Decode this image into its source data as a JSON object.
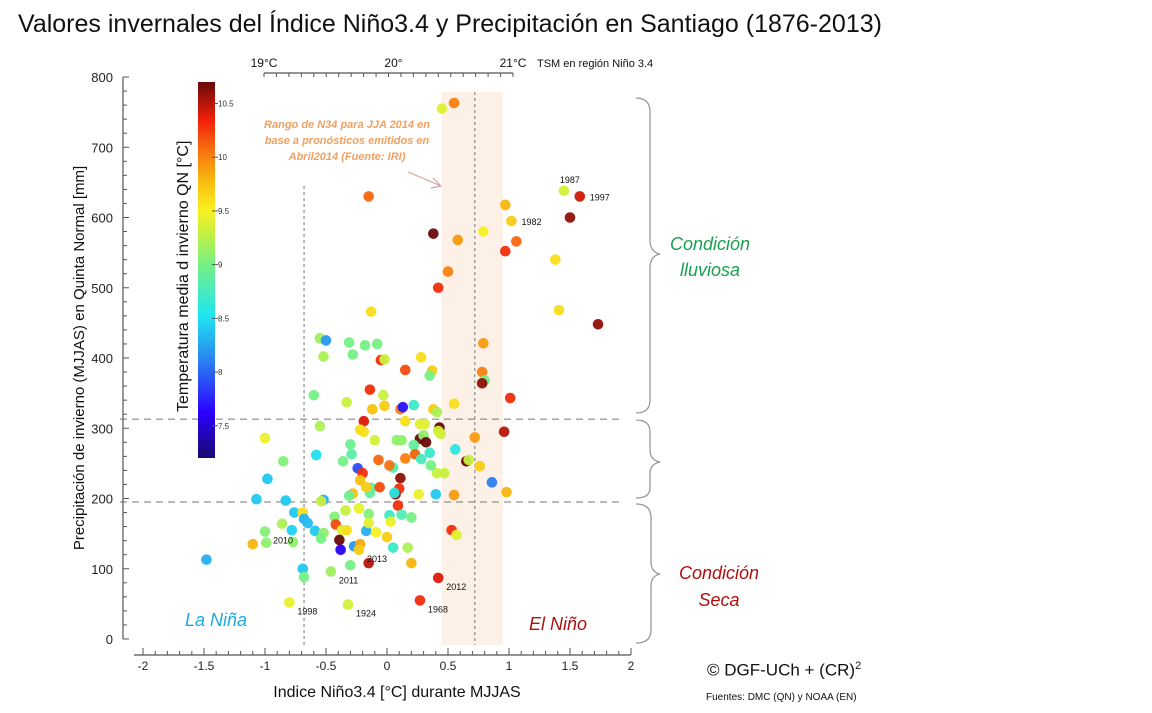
{
  "title": "Valores invernales del Índice Niño3.4 y Precipitación en Santiago (1876-2013)",
  "credit": {
    "text": "© DGF-UCh  + (CR)",
    "superscript": "2"
  },
  "sources": "Fuentes: DMC (QN) y NOAA (EN)",
  "annotations": {
    "forecast_range": [
      "Rango de N34 para JJA 2014 en",
      "base a pronósticos emitidos en",
      "Abril2014 (Fuente: IRI)"
    ],
    "la_nina": "La Niña",
    "el_nino": "El Niño",
    "rainy": [
      "Condición",
      "lluviosa"
    ],
    "dry": [
      "Condición",
      "Seca"
    ]
  },
  "colors": {
    "forecast_text": "#f0a060",
    "forecast_band": "#fdf0e6",
    "rainy_text": "#1aa050",
    "dry_text": "#b01010",
    "la_nina_text": "#20a8e0",
    "el_nino_text": "#b01010"
  },
  "chart_data": {
    "type": "scatter",
    "title": "Valores invernales del Índice Niño3.4 y Precipitación en Santiago (1876-2013)",
    "xlabel": "Indice Niño3.4 [°C] durante MJJAS",
    "ylabel": "Precipitación de invierno (MJJAS)  en Quinta Normal [mm]",
    "xlim": [
      -2,
      2
    ],
    "ylim": [
      0,
      800
    ],
    "xticks": [
      -2,
      -1.5,
      -1,
      -0.5,
      0,
      0.5,
      1,
      1.5,
      2
    ],
    "xtick_labels": [
      "-2",
      "-1.5",
      "-1",
      "-0.5",
      "0",
      "0.5",
      "1",
      "1.5",
      "2"
    ],
    "yticks": [
      0,
      100,
      200,
      300,
      400,
      500,
      600,
      700,
      800
    ],
    "ytick_labels": [
      "0",
      "100",
      "200",
      "300",
      "400",
      "500",
      "600",
      "700",
      "800"
    ],
    "top_axis": {
      "label": "TSM en región Niño 3.4",
      "ticks": [
        {
          "x": -1.0,
          "label": "19°C"
        },
        {
          "x": 0.0,
          "label": "20°"
        },
        {
          "x": 1.0,
          "label": "21°C"
        }
      ]
    },
    "colorbar": {
      "label": "Temperatura media d invierno QN [°C]",
      "range": [
        7.2,
        10.7
      ],
      "ticks": [
        7.5,
        8,
        8.5,
        9,
        9.5,
        10,
        10.5
      ],
      "tick_labels": [
        "7.5",
        "8",
        "8.5",
        "9",
        "9.5",
        "10",
        "10.5"
      ],
      "colormap": "jet"
    },
    "reference_lines": {
      "horizontal_mm": [
        313,
        195
      ],
      "vertical_index": [
        -0.68,
        0.72
      ]
    },
    "forecast_band": [
      0.45,
      0.95
    ],
    "grid": false,
    "points": [
      {
        "x": 0.45,
        "y": 755,
        "t": 9.4
      },
      {
        "x": 0.55,
        "y": 763,
        "t": 10.0
      },
      {
        "x": -0.15,
        "y": 630,
        "t": 10.1
      },
      {
        "x": 1.45,
        "y": 638,
        "t": 9.35,
        "label": "1987"
      },
      {
        "x": 1.58,
        "y": 630,
        "t": 10.45,
        "label": "1997"
      },
      {
        "x": 0.97,
        "y": 618,
        "t": 9.8
      },
      {
        "x": 1.02,
        "y": 595,
        "t": 9.7,
        "label": "1982"
      },
      {
        "x": 1.5,
        "y": 600,
        "t": 10.6
      },
      {
        "x": 0.38,
        "y": 577,
        "t": 10.8
      },
      {
        "x": 0.58,
        "y": 568,
        "t": 9.9
      },
      {
        "x": 0.79,
        "y": 580,
        "t": 9.5
      },
      {
        "x": 1.06,
        "y": 566,
        "t": 10.1
      },
      {
        "x": 0.97,
        "y": 552,
        "t": 10.3
      },
      {
        "x": 1.38,
        "y": 540,
        "t": 9.6
      },
      {
        "x": 0.5,
        "y": 523,
        "t": 10.0
      },
      {
        "x": 0.42,
        "y": 500,
        "t": 10.3
      },
      {
        "x": 1.41,
        "y": 468,
        "t": 9.6
      },
      {
        "x": 1.73,
        "y": 448,
        "t": 10.6
      },
      {
        "x": -0.13,
        "y": 466,
        "t": 9.6
      },
      {
        "x": -0.55,
        "y": 428,
        "t": 9.15
      },
      {
        "x": -0.5,
        "y": 425,
        "t": 8.2
      },
      {
        "x": -0.31,
        "y": 422,
        "t": 9.0
      },
      {
        "x": -0.18,
        "y": 418,
        "t": 9.0
      },
      {
        "x": -0.08,
        "y": 420,
        "t": 9.0
      },
      {
        "x": -0.52,
        "y": 402,
        "t": 9.2
      },
      {
        "x": -0.28,
        "y": 405,
        "t": 9.0
      },
      {
        "x": -0.05,
        "y": 397,
        "t": 10.3
      },
      {
        "x": -0.02,
        "y": 398,
        "t": 9.3
      },
      {
        "x": 0.28,
        "y": 401,
        "t": 9.6
      },
      {
        "x": 0.79,
        "y": 421,
        "t": 9.9
      },
      {
        "x": 0.78,
        "y": 380,
        "t": 10.0
      },
      {
        "x": 0.8,
        "y": 368,
        "t": 8.95
      },
      {
        "x": 0.78,
        "y": 364,
        "t": 10.6
      },
      {
        "x": 1.01,
        "y": 343,
        "t": 10.3
      },
      {
        "x": 0.37,
        "y": 382,
        "t": 9.7
      },
      {
        "x": 0.15,
        "y": 383,
        "t": 10.2
      },
      {
        "x": 0.35,
        "y": 375,
        "t": 9.0
      },
      {
        "x": -0.6,
        "y": 347,
        "t": 9.0
      },
      {
        "x": -0.14,
        "y": 355,
        "t": 10.3
      },
      {
        "x": -0.03,
        "y": 347,
        "t": 9.3
      },
      {
        "x": 0.55,
        "y": 335,
        "t": 9.6
      },
      {
        "x": -0.33,
        "y": 337,
        "t": 9.3
      },
      {
        "x": -0.12,
        "y": 327,
        "t": 9.75
      },
      {
        "x": -0.02,
        "y": 332,
        "t": 9.7
      },
      {
        "x": 0.11,
        "y": 327,
        "t": 10.0
      },
      {
        "x": 0.13,
        "y": 330,
        "t": 7.7
      },
      {
        "x": 0.22,
        "y": 333,
        "t": 8.7
      },
      {
        "x": 0.38,
        "y": 327,
        "t": 9.7
      },
      {
        "x": 0.41,
        "y": 323,
        "t": 9.2
      },
      {
        "x": -0.55,
        "y": 303,
        "t": 9.2
      },
      {
        "x": -0.19,
        "y": 310,
        "t": 10.4
      },
      {
        "x": 0.15,
        "y": 310,
        "t": 9.6
      },
      {
        "x": 0.27,
        "y": 306,
        "t": 9.4
      },
      {
        "x": 0.31,
        "y": 306,
        "t": 9.4
      },
      {
        "x": 0.43,
        "y": 301,
        "t": 10.8
      },
      {
        "x": 0.72,
        "y": 287,
        "t": 9.9
      },
      {
        "x": 0.96,
        "y": 295,
        "t": 10.5
      },
      {
        "x": -1.0,
        "y": 286,
        "t": 9.45
      },
      {
        "x": -0.22,
        "y": 298,
        "t": 9.6
      },
      {
        "x": -0.19,
        "y": 295,
        "t": 9.6
      },
      {
        "x": -0.1,
        "y": 283,
        "t": 9.35
      },
      {
        "x": 0.08,
        "y": 283,
        "t": 9.1
      },
      {
        "x": 0.12,
        "y": 283,
        "t": 9.1
      },
      {
        "x": 0.27,
        "y": 285,
        "t": 10.8
      },
      {
        "x": 0.3,
        "y": 290,
        "t": 9.1
      },
      {
        "x": 0.22,
        "y": 276,
        "t": 8.9
      },
      {
        "x": -0.3,
        "y": 277,
        "t": 8.95
      },
      {
        "x": 0.56,
        "y": 270,
        "t": 8.6
      },
      {
        "x": -0.58,
        "y": 262,
        "t": 8.5
      },
      {
        "x": -0.36,
        "y": 253,
        "t": 9.0
      },
      {
        "x": -0.29,
        "y": 263,
        "t": 8.85
      },
      {
        "x": -0.07,
        "y": 255,
        "t": 10.1
      },
      {
        "x": 0.05,
        "y": 244,
        "t": 8.8
      },
      {
        "x": 0.15,
        "y": 257,
        "t": 10.0
      },
      {
        "x": 0.23,
        "y": 263,
        "t": 8.7
      },
      {
        "x": 0.65,
        "y": 253,
        "t": 10.8
      },
      {
        "x": 0.67,
        "y": 255,
        "t": 9.3
      },
      {
        "x": 0.76,
        "y": 246,
        "t": 9.7
      },
      {
        "x": -0.85,
        "y": 253,
        "t": 9.05
      },
      {
        "x": -0.98,
        "y": 228,
        "t": 8.4
      },
      {
        "x": -0.24,
        "y": 243,
        "t": 7.9
      },
      {
        "x": -0.2,
        "y": 236,
        "t": 10.3
      },
      {
        "x": -0.22,
        "y": 226,
        "t": 9.75
      },
      {
        "x": 0.02,
        "y": 247,
        "t": 10.05
      },
      {
        "x": 0.11,
        "y": 229,
        "t": 10.6
      },
      {
        "x": 0.1,
        "y": 214,
        "t": 10.3
      },
      {
        "x": 0.07,
        "y": 206,
        "t": 10.6
      },
      {
        "x": 0.06,
        "y": 208,
        "t": 8.6
      },
      {
        "x": -0.13,
        "y": 215,
        "t": 8.9
      },
      {
        "x": -0.14,
        "y": 208,
        "t": 8.9
      },
      {
        "x": -0.06,
        "y": 216,
        "t": 10.2
      },
      {
        "x": -0.28,
        "y": 207,
        "t": 9.75
      },
      {
        "x": -0.31,
        "y": 204,
        "t": 8.95
      },
      {
        "x": 0.41,
        "y": 236,
        "t": 9.3
      },
      {
        "x": 0.47,
        "y": 236,
        "t": 9.3
      },
      {
        "x": 0.26,
        "y": 206,
        "t": 9.45
      },
      {
        "x": 0.4,
        "y": 206,
        "t": 8.4
      },
      {
        "x": 0.55,
        "y": 205,
        "t": 9.9
      },
      {
        "x": 0.86,
        "y": 223,
        "t": 8.1
      },
      {
        "x": 0.98,
        "y": 209,
        "t": 9.8
      },
      {
        "x": -1.07,
        "y": 199,
        "t": 8.4
      },
      {
        "x": -0.83,
        "y": 197,
        "t": 8.4
      },
      {
        "x": -0.52,
        "y": 198,
        "t": 8.3
      },
      {
        "x": -0.54,
        "y": 196,
        "t": 9.3
      },
      {
        "x": -0.76,
        "y": 180,
        "t": 8.4
      },
      {
        "x": -0.69,
        "y": 180,
        "t": 9.6
      },
      {
        "x": -0.68,
        "y": 171,
        "t": 8.3
      },
      {
        "x": -0.43,
        "y": 174,
        "t": 9.05
      },
      {
        "x": -0.34,
        "y": 183,
        "t": 9.3
      },
      {
        "x": -0.23,
        "y": 186,
        "t": 9.45
      },
      {
        "x": -0.15,
        "y": 178,
        "t": 9.05
      },
      {
        "x": 0.02,
        "y": 176,
        "t": 8.7
      },
      {
        "x": 0.09,
        "y": 190,
        "t": 10.3
      },
      {
        "x": -0.59,
        "y": 154,
        "t": 8.4
      },
      {
        "x": -0.65,
        "y": 165,
        "t": 8.35
      },
      {
        "x": -0.42,
        "y": 163,
        "t": 10.2
      },
      {
        "x": -0.37,
        "y": 155,
        "t": 9.4
      },
      {
        "x": -0.33,
        "y": 155,
        "t": 9.6
      },
      {
        "x": -0.52,
        "y": 151,
        "t": 9.1
      },
      {
        "x": -0.54,
        "y": 143,
        "t": 9.0
      },
      {
        "x": -0.39,
        "y": 141,
        "t": 10.8
      },
      {
        "x": -0.17,
        "y": 154,
        "t": 8.3
      },
      {
        "x": -0.09,
        "y": 152,
        "t": 9.5
      },
      {
        "x": 0.03,
        "y": 167,
        "t": 9.45
      },
      {
        "x": 0.12,
        "y": 177,
        "t": 8.8
      },
      {
        "x": -0.15,
        "y": 165,
        "t": 9.4
      },
      {
        "x": 0.2,
        "y": 173,
        "t": 9.0
      },
      {
        "x": -0.27,
        "y": 132,
        "t": 8.2
      },
      {
        "x": -0.22,
        "y": 135,
        "t": 9.85
      },
      {
        "x": -0.23,
        "y": 127,
        "t": 9.7,
        "label": "2013"
      },
      {
        "x": 0.0,
        "y": 145,
        "t": 9.7
      },
      {
        "x": 0.05,
        "y": 130,
        "t": 8.7
      },
      {
        "x": -0.38,
        "y": 127,
        "t": 7.6
      },
      {
        "x": 0.53,
        "y": 155,
        "t": 10.3
      },
      {
        "x": 0.57,
        "y": 148,
        "t": 9.4
      },
      {
        "x": -1.1,
        "y": 135,
        "t": 9.8
      },
      {
        "x": -0.99,
        "y": 137,
        "t": 9.1
      },
      {
        "x": -1.0,
        "y": 153,
        "t": 9.05,
        "label": "2010"
      },
      {
        "x": -0.77,
        "y": 138,
        "t": 9.1
      },
      {
        "x": -0.78,
        "y": 155,
        "t": 8.45
      },
      {
        "x": -0.86,
        "y": 164,
        "t": 9.2
      },
      {
        "x": -1.48,
        "y": 113,
        "t": 8.3
      },
      {
        "x": -0.69,
        "y": 100,
        "t": 8.4
      },
      {
        "x": -0.68,
        "y": 88,
        "t": 9.0
      },
      {
        "x": -0.46,
        "y": 96,
        "t": 9.15,
        "label": "2011"
      },
      {
        "x": -0.3,
        "y": 105,
        "t": 9.0
      },
      {
        "x": -0.15,
        "y": 108,
        "t": 10.5
      },
      {
        "x": 0.17,
        "y": 130,
        "t": 9.2
      },
      {
        "x": 0.2,
        "y": 108,
        "t": 9.8
      },
      {
        "x": 0.42,
        "y": 87,
        "t": 10.4,
        "label": "2012"
      },
      {
        "x": -0.8,
        "y": 52,
        "t": 9.45,
        "label": "1998"
      },
      {
        "x": -0.32,
        "y": 49,
        "t": 9.35,
        "label": "1924"
      },
      {
        "x": 0.27,
        "y": 55,
        "t": 10.3,
        "label": "1968"
      },
      {
        "x": 0.23,
        "y": 263,
        "t": 10.1
      },
      {
        "x": 0.28,
        "y": 256,
        "t": 8.75
      },
      {
        "x": 0.32,
        "y": 280,
        "t": 10.7
      },
      {
        "x": 0.35,
        "y": 265,
        "t": 8.7
      },
      {
        "x": 0.36,
        "y": 247,
        "t": 9.0
      },
      {
        "x": -0.17,
        "y": 216,
        "t": 9.7
      },
      {
        "x": 0.44,
        "y": 292,
        "t": 9.3
      },
      {
        "x": 0.42,
        "y": 296,
        "t": 9.35
      }
    ]
  },
  "year_labels_note": "Years labeled in chart: 1987, 1997, 1982, 2010, 2013, 2011, 2012, 1998, 1924, 1968"
}
